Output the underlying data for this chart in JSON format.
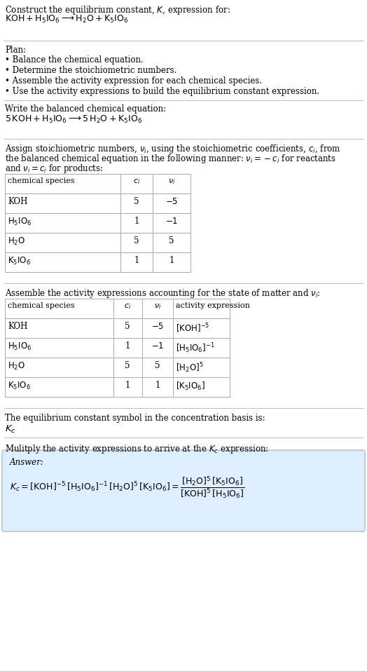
{
  "title_line1": "Construct the equilibrium constant, $K$, expression for:",
  "title_line2": "$\\mathrm{KOH + H_5IO_6 \\longrightarrow H_2O + K_5IO_6}$",
  "plan_header": "Plan:",
  "plan_bullets": [
    "• Balance the chemical equation.",
    "• Determine the stoichiometric numbers.",
    "• Assemble the activity expression for each chemical species.",
    "• Use the activity expressions to build the equilibrium constant expression."
  ],
  "balanced_header": "Write the balanced chemical equation:",
  "balanced_eq": "$\\mathrm{5\\,KOH + H_5IO_6 \\longrightarrow 5\\,H_2O + K_5IO_6}$",
  "stoich_intro": "Assign stoichiometric numbers, $\\nu_i$, using the stoichiometric coefficients, $c_i$, from the balanced chemical equation in the following manner: $\\nu_i = -c_i$ for reactants and $\\nu_i = c_i$ for products:",
  "table1_cols": [
    "chemical species",
    "$c_i$",
    "$\\nu_i$"
  ],
  "table1_rows": [
    [
      "KOH",
      "5",
      "$-5$"
    ],
    [
      "$\\mathrm{H_5IO_6}$",
      "1",
      "$-1$"
    ],
    [
      "$\\mathrm{H_2O}$",
      "5",
      "5"
    ],
    [
      "$\\mathrm{K_5IO_6}$",
      "1",
      "1"
    ]
  ],
  "activity_header": "Assemble the activity expressions accounting for the state of matter and $\\nu_i$:",
  "table2_cols": [
    "chemical species",
    "$c_i$",
    "$\\nu_i$",
    "activity expression"
  ],
  "table2_rows": [
    [
      "KOH",
      "5",
      "$-5$",
      "$[\\mathrm{KOH}]^{-5}$"
    ],
    [
      "$\\mathrm{H_5IO_6}$",
      "1",
      "$-1$",
      "$[\\mathrm{H_5IO_6}]^{-1}$"
    ],
    [
      "$\\mathrm{H_2O}$",
      "5",
      "5",
      "$[\\mathrm{H_2O}]^{5}$"
    ],
    [
      "$\\mathrm{K_5IO_6}$",
      "1",
      "1",
      "$[\\mathrm{K_5IO_6}]$"
    ]
  ],
  "kc_symbol_header": "The equilibrium constant symbol in the concentration basis is:",
  "kc_symbol": "$K_c$",
  "multiply_header": "Mulitply the activity expressions to arrive at the $K_c$ expression:",
  "answer_label": "Answer:",
  "bg_color": "#ffffff",
  "table_line_color": "#aaaaaa",
  "answer_box_color": "#ddeeff",
  "answer_box_border": "#aabbcc",
  "text_color": "#000000",
  "font_size": 8.5
}
